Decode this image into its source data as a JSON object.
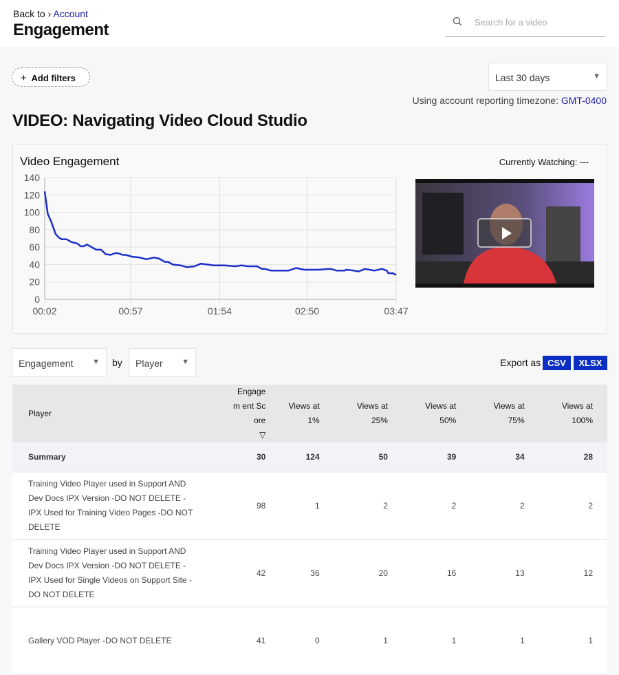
{
  "header": {
    "back_label": "Back to",
    "separator": "›",
    "account_link": "Account",
    "title": "Engagement",
    "search_placeholder": "Search for a video",
    "search_icon": "search-icon"
  },
  "toolbar": {
    "add_filters": "Add filters",
    "date_range": "Last 30 days",
    "timezone_label": "Using account reporting timezone:",
    "timezone": "GMT-0400"
  },
  "video_title": "VIDEO: Navigating Video Cloud Studio",
  "engagement_card": {
    "title": "Video Engagement",
    "currently_watching": "Currently Watching: ---"
  },
  "chart_data": {
    "type": "line",
    "title": "Video Engagement",
    "xlabel": "",
    "ylabel": "",
    "ylim": [
      0,
      140
    ],
    "yticks": [
      "0",
      "20",
      "40",
      "60",
      "80",
      "100",
      "120",
      "140"
    ],
    "xticks": [
      "00:02",
      "00:57",
      "01:54",
      "02:50",
      "03:47"
    ],
    "grid": true,
    "color": "#1a2fc8",
    "x_seconds": [
      2,
      4,
      6,
      9,
      11,
      13,
      16,
      19,
      23,
      25,
      27,
      29,
      32,
      35,
      38,
      41,
      44,
      47,
      49,
      52,
      54,
      58,
      63,
      67,
      72,
      75,
      79,
      81,
      84,
      89,
      93,
      98,
      102,
      106,
      110,
      117,
      124,
      128,
      132,
      138,
      141,
      143,
      147,
      158,
      163,
      168,
      177,
      185,
      189,
      194,
      195,
      200,
      203,
      207,
      210,
      213,
      218,
      221,
      222,
      225,
      227
    ],
    "values": [
      124,
      98,
      90,
      75,
      71,
      69,
      69,
      66,
      64,
      61,
      61,
      63,
      60,
      57,
      57,
      52,
      51,
      53,
      53,
      51,
      51,
      49,
      48,
      46,
      48,
      47,
      43,
      43,
      40,
      39,
      37,
      38,
      41,
      40,
      39,
      39,
      38,
      39,
      38,
      38,
      35,
      35,
      33,
      33,
      36,
      34,
      34,
      35,
      33,
      33,
      34,
      33,
      32,
      35,
      34,
      33,
      35,
      33,
      30,
      30,
      28
    ]
  },
  "controls": {
    "metric": "Engagement",
    "by_label": "by",
    "dimension": "Player",
    "export_label": "Export as",
    "csv": "CSV",
    "xlsx": "XLSX"
  },
  "table": {
    "columns": [
      "Player",
      "Engagem ent Score",
      "Views at 1%",
      "Views at 25%",
      "Views at 50%",
      "Views at 75%",
      "Views at 100%"
    ],
    "sort_icon": "▽",
    "summary": [
      "Summary",
      "30",
      "124",
      "50",
      "39",
      "34",
      "28"
    ],
    "rows": [
      [
        "Training Video Player used in Support AND Dev Docs IPX Version -DO NOT DELETE -IPX Used for Training Video Pages -DO NOT DELETE",
        "98",
        "1",
        "2",
        "2",
        "2",
        "2"
      ],
      [
        "Training Video Player used in Support AND Dev Docs IPX Version -DO NOT DELETE -IPX Used for Single Videos on Support Site -DO NOT DELETE",
        "42",
        "36",
        "20",
        "16",
        "13",
        "12"
      ],
      [
        "Gallery VOD Player -DO NOT DELETE",
        "41",
        "0",
        "1",
        "1",
        "1",
        "1"
      ]
    ]
  }
}
